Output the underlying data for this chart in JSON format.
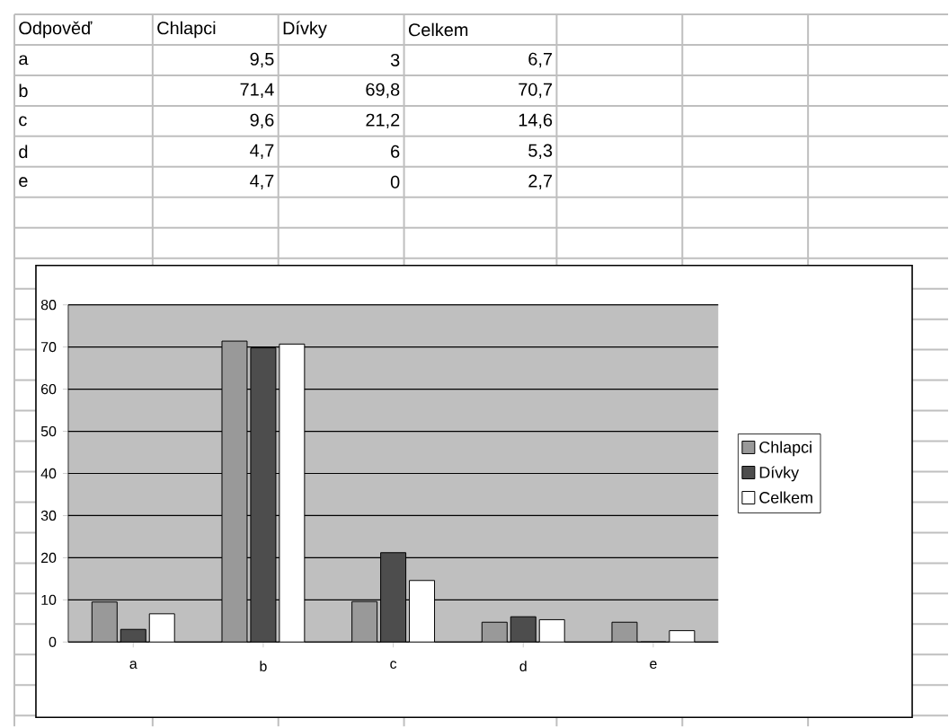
{
  "chart_data": [
    {
      "type": "other",
      "annotations": [
        "Odpověď"
      ],
      "categories": [
        "a",
        "b",
        "c",
        "d",
        "e"
      ],
      "series": [
        {
          "name": "Chlapci",
          "values": [
            9.5,
            71.4,
            9.6,
            4.7,
            4.7
          ],
          "value_labels": [
            "9,5",
            "71,4",
            "9,6",
            "4,7",
            "4,7"
          ]
        },
        {
          "name": "Dívky",
          "values": [
            3,
            69.8,
            21.2,
            6,
            0
          ],
          "value_labels": [
            "3",
            "69,8",
            "21,2",
            "6",
            "0"
          ]
        },
        {
          "name": "Celkem",
          "values": [
            6.7,
            70.7,
            14.6,
            5.3,
            2.7
          ],
          "value_labels": [
            "6,7",
            "70,7",
            "14,6",
            "5,3",
            "2,7"
          ]
        }
      ]
    },
    {
      "type": "bar",
      "categories": [
        "a",
        "b",
        "c",
        "d",
        "e"
      ],
      "series": [
        {
          "name": "Chlapci",
          "color": "#999999",
          "values": [
            9.5,
            71.4,
            9.6,
            4.7,
            4.7
          ]
        },
        {
          "name": "Dívky",
          "color": "#4d4d4d",
          "values": [
            3,
            69.8,
            21.2,
            6,
            0
          ]
        },
        {
          "name": "Celkem",
          "color": "#ffffff",
          "values": [
            6.7,
            70.7,
            14.6,
            5.3,
            2.7
          ]
        }
      ],
      "ylim": [
        0,
        80
      ],
      "yticks": [
        0,
        10,
        20,
        30,
        40,
        50,
        60,
        70,
        80
      ],
      "grid": "y",
      "legend": "right"
    }
  ]
}
